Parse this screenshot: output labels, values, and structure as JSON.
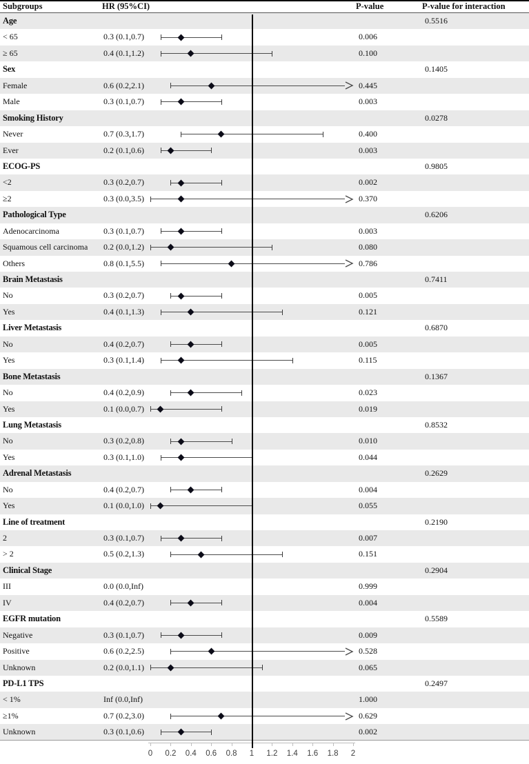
{
  "header": {
    "subgroups": "Subgroups",
    "hr": "HR (95%CI)",
    "pvalue": "P-value",
    "interaction": "P-value for interaction"
  },
  "colors": {
    "row_alt": "#e9e9e9",
    "row_plain": "#ffffff",
    "marker": "#0c0c18",
    "ci_line": "#4a4a4a",
    "refline": "#000000",
    "axis": "#bdbdbd"
  },
  "chart_data": {
    "type": "forest",
    "title": "",
    "x_axis": {
      "min": 0,
      "max": 2,
      "reference_line": 1,
      "tick_labels": [
        "0",
        "0.2",
        "0.4",
        "0.6",
        "0.8",
        "1",
        "1.2",
        "1.4",
        "1.6",
        "1.8",
        "2"
      ],
      "tick_values": [
        0,
        0.2,
        0.4,
        0.6,
        0.8,
        1,
        1.2,
        1.4,
        1.6,
        1.8,
        2
      ]
    },
    "rows": [
      {
        "type": "group",
        "label": "Age",
        "p_interaction": "0.5516"
      },
      {
        "type": "item",
        "label": "< 65",
        "hr_text": "0.3 (0.1,0.7)",
        "est": 0.3,
        "lo": 0.1,
        "hi": 0.7,
        "arrow": false,
        "p": "0.006"
      },
      {
        "type": "item",
        "label": "≥ 65",
        "hr_text": "0.4 (0.1,1.2)",
        "est": 0.4,
        "lo": 0.1,
        "hi": 1.2,
        "arrow": false,
        "p": "0.100"
      },
      {
        "type": "group",
        "label": "Sex",
        "p_interaction": "0.1405"
      },
      {
        "type": "item",
        "label": "Female",
        "hr_text": "0.6 (0.2,2.1)",
        "est": 0.6,
        "lo": 0.2,
        "hi": 2.1,
        "arrow": true,
        "p": "0.445"
      },
      {
        "type": "item",
        "label": "Male",
        "hr_text": "0.3 (0.1,0.7)",
        "est": 0.3,
        "lo": 0.1,
        "hi": 0.7,
        "arrow": false,
        "p": "0.003"
      },
      {
        "type": "group",
        "label": "Smoking History",
        "p_interaction": "0.0278"
      },
      {
        "type": "item",
        "label": "Never",
        "hr_text": "0.7 (0.3,1.7)",
        "est": 0.7,
        "lo": 0.3,
        "hi": 1.7,
        "arrow": false,
        "p": "0.400"
      },
      {
        "type": "item",
        "label": "Ever",
        "hr_text": "0.2 (0.1,0.6)",
        "est": 0.2,
        "lo": 0.1,
        "hi": 0.6,
        "arrow": false,
        "p": "0.003"
      },
      {
        "type": "group",
        "label": "ECOG-PS",
        "p_interaction": "0.9805"
      },
      {
        "type": "item",
        "label": "<2",
        "hr_text": "0.3 (0.2,0.7)",
        "est": 0.3,
        "lo": 0.2,
        "hi": 0.7,
        "arrow": false,
        "p": "0.002"
      },
      {
        "type": "item",
        "label": "≥2",
        "hr_text": "0.3 (0.0,3.5)",
        "est": 0.3,
        "lo": 0.0,
        "hi": 3.5,
        "arrow": true,
        "p": "0.370"
      },
      {
        "type": "group",
        "label": "Pathological Type",
        "p_interaction": "0.6206"
      },
      {
        "type": "item",
        "label": "Adenocarcinoma",
        "hr_text": "0.3 (0.1,0.7)",
        "est": 0.3,
        "lo": 0.1,
        "hi": 0.7,
        "arrow": false,
        "p": "0.003"
      },
      {
        "type": "item",
        "label": "Squamous cell carcinoma",
        "hr_text": "0.2 (0.0,1.2)",
        "est": 0.2,
        "lo": 0.0,
        "hi": 1.2,
        "arrow": false,
        "p": "0.080"
      },
      {
        "type": "item",
        "label": "Others",
        "hr_text": "0.8 (0.1,5.5)",
        "est": 0.8,
        "lo": 0.1,
        "hi": 5.5,
        "arrow": true,
        "p": "0.786"
      },
      {
        "type": "group",
        "label": "Brain Metastasis",
        "p_interaction": "0.7411"
      },
      {
        "type": "item",
        "label": "No",
        "hr_text": "0.3 (0.2,0.7)",
        "est": 0.3,
        "lo": 0.2,
        "hi": 0.7,
        "arrow": false,
        "p": "0.005"
      },
      {
        "type": "item",
        "label": "Yes",
        "hr_text": "0.4 (0.1,1.3)",
        "est": 0.4,
        "lo": 0.1,
        "hi": 1.3,
        "arrow": false,
        "p": "0.121"
      },
      {
        "type": "group",
        "label": "Liver Metastasis",
        "p_interaction": "0.6870"
      },
      {
        "type": "item",
        "label": "No",
        "hr_text": "0.4 (0.2,0.7)",
        "est": 0.4,
        "lo": 0.2,
        "hi": 0.7,
        "arrow": false,
        "p": "0.005"
      },
      {
        "type": "item",
        "label": "Yes",
        "hr_text": "0.3 (0.1,1.4)",
        "est": 0.3,
        "lo": 0.1,
        "hi": 1.4,
        "arrow": false,
        "p": "0.115"
      },
      {
        "type": "group",
        "label": "Bone Metastasis",
        "p_interaction": "0.1367"
      },
      {
        "type": "item",
        "label": "No",
        "hr_text": "0.4 (0.2,0.9)",
        "est": 0.4,
        "lo": 0.2,
        "hi": 0.9,
        "arrow": false,
        "p": "0.023"
      },
      {
        "type": "item",
        "label": "Yes",
        "hr_text": "0.1 (0.0,0.7)",
        "est": 0.1,
        "lo": 0.0,
        "hi": 0.7,
        "arrow": false,
        "p": "0.019"
      },
      {
        "type": "group",
        "label": "Lung Metastasis",
        "p_interaction": "0.8532"
      },
      {
        "type": "item",
        "label": "No",
        "hr_text": "0.3 (0.2,0.8)",
        "est": 0.3,
        "lo": 0.2,
        "hi": 0.8,
        "arrow": false,
        "p": "0.010"
      },
      {
        "type": "item",
        "label": "Yes",
        "hr_text": "0.3 (0.1,1.0)",
        "est": 0.3,
        "lo": 0.1,
        "hi": 1.0,
        "arrow": false,
        "p": "0.044"
      },
      {
        "type": "group",
        "label": "Adrenal Metastasis",
        "p_interaction": "0.2629"
      },
      {
        "type": "item",
        "label": "No",
        "hr_text": "0.4 (0.2,0.7)",
        "est": 0.4,
        "lo": 0.2,
        "hi": 0.7,
        "arrow": false,
        "p": "0.004"
      },
      {
        "type": "item",
        "label": "Yes",
        "hr_text": "0.1 (0.0,1.0)",
        "est": 0.1,
        "lo": 0.0,
        "hi": 1.0,
        "arrow": false,
        "p": "0.055"
      },
      {
        "type": "group",
        "label": "Line of treatment",
        "p_interaction": "0.2190"
      },
      {
        "type": "item",
        "label": "2",
        "hr_text": "0.3 (0.1,0.7)",
        "est": 0.3,
        "lo": 0.1,
        "hi": 0.7,
        "arrow": false,
        "p": "0.007"
      },
      {
        "type": "item",
        "label": "> 2",
        "hr_text": "0.5 (0.2,1.3)",
        "est": 0.5,
        "lo": 0.2,
        "hi": 1.3,
        "arrow": false,
        "p": "0.151"
      },
      {
        "type": "group",
        "label": "Clinical Stage",
        "p_interaction": "0.2904"
      },
      {
        "type": "item",
        "label": "III",
        "hr_text": "0.0 (0.0,Inf)",
        "p": "0.999"
      },
      {
        "type": "item",
        "label": "IV",
        "hr_text": "0.4 (0.2,0.7)",
        "est": 0.4,
        "lo": 0.2,
        "hi": 0.7,
        "arrow": false,
        "p": "0.004"
      },
      {
        "type": "group",
        "label": "EGFR mutation",
        "p_interaction": "0.5589"
      },
      {
        "type": "item",
        "label": "Negative",
        "hr_text": "0.3 (0.1,0.7)",
        "est": 0.3,
        "lo": 0.1,
        "hi": 0.7,
        "arrow": false,
        "p": "0.009"
      },
      {
        "type": "item",
        "label": "Positive",
        "hr_text": "0.6 (0.2,2.5)",
        "est": 0.6,
        "lo": 0.2,
        "hi": 2.5,
        "arrow": true,
        "p": "0.528"
      },
      {
        "type": "item",
        "label": "Unknown",
        "hr_text": "0.2 (0.0,1.1)",
        "est": 0.2,
        "lo": 0.0,
        "hi": 1.1,
        "arrow": false,
        "p": "0.065"
      },
      {
        "type": "group",
        "label": "PD-L1 TPS",
        "p_interaction": "0.2497"
      },
      {
        "type": "item",
        "label": "< 1%",
        "hr_text": "Inf (0.0,Inf)",
        "p": "1.000"
      },
      {
        "type": "item",
        "label": "≥1%",
        "hr_text": "0.7 (0.2,3.0)",
        "est": 0.7,
        "lo": 0.2,
        "hi": 3.0,
        "arrow": true,
        "p": "0.629"
      },
      {
        "type": "item",
        "label": "Unknown",
        "hr_text": "0.3 (0.1,0.6)",
        "est": 0.3,
        "lo": 0.1,
        "hi": 0.6,
        "arrow": false,
        "p": "0.002"
      }
    ]
  }
}
